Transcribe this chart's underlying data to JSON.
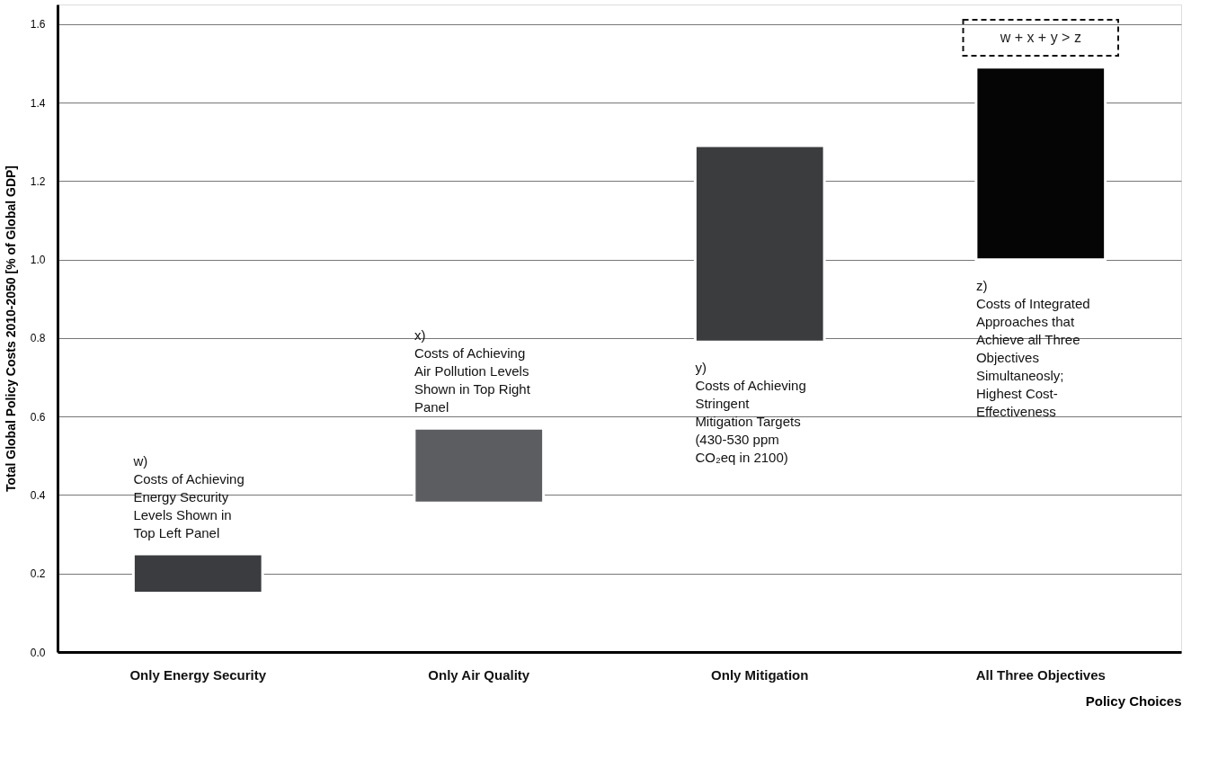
{
  "chart_data": {
    "type": "bar",
    "ylabel": "Total Global Policy Costs 2010-2050 [% of Global GDP]",
    "xlabel": "Policy Choices",
    "categories": [
      "Only Energy Security",
      "Only Air Quality",
      "Only Mitigation",
      "All Three Objectives"
    ],
    "base": [
      0.15,
      0.38,
      0.79,
      1.0
    ],
    "values": [
      0.1,
      0.19,
      0.5,
      0.49
    ],
    "colors": [
      "#3a3c3f",
      "#5c5d60",
      "#3b3c3e",
      "#050505"
    ],
    "ylim": [
      0,
      1.65
    ],
    "yticks": [
      {
        "value": 0,
        "label": "0.0"
      },
      0.2,
      0.4,
      0.6,
      0.8,
      {
        "value": 1,
        "label": "1.0"
      },
      1.2,
      1.4,
      1.6
    ],
    "grid": "y",
    "annotations": [
      "w)\nCosts of Achieving\nEnergy Security\nLevels Shown in\nTop Left Panel",
      "x)\nCosts of Achieving\nAir Pollution Levels\nShown in Top Right\nPanel",
      "y)\nCosts of Achieving\nStringent\nMitigation Targets\n(430-530 ppm\nCO₂eq in 2100)",
      "z)\nCosts of Integrated\nApproaches that\nAchieve all Three\nObjectives\nSimultaneosly;\nHighest Cost-\nEffectiveness",
      "w + x + y > z"
    ]
  }
}
